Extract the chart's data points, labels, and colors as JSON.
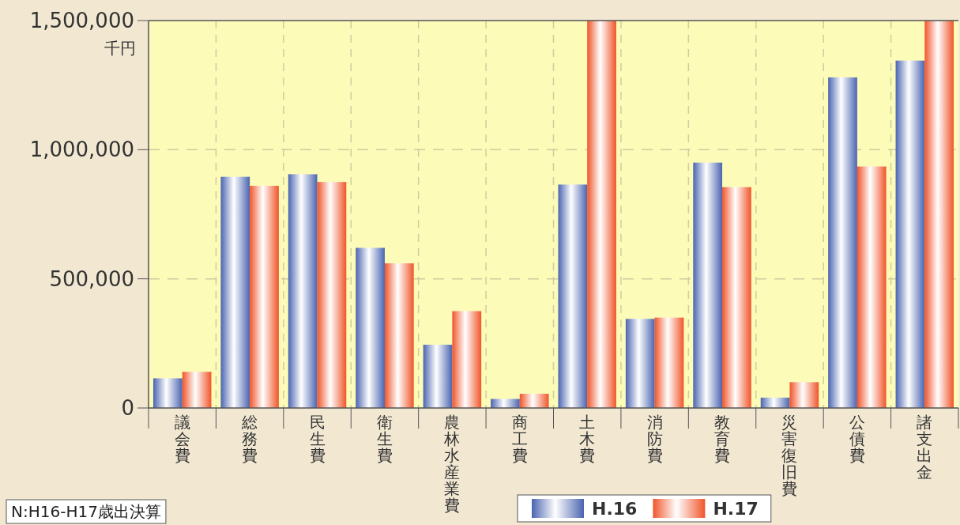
{
  "chart_data": {
    "type": "bar",
    "ylabel": "千円",
    "categories": [
      "議会費",
      "総務費",
      "民生費",
      "衛生費",
      "農林水産業費",
      "商工費",
      "土木費",
      "消防費",
      "教育費",
      "災害復旧費",
      "公債費",
      "諸支出金"
    ],
    "series": [
      {
        "name": "H.16",
        "color": "#4a64b0",
        "values": [
          115000,
          895000,
          905000,
          620000,
          245000,
          35000,
          865000,
          345000,
          950000,
          40000,
          1280000,
          1345000
        ]
      },
      {
        "name": "H.17",
        "color": "#f0552a",
        "values": [
          140000,
          860000,
          875000,
          560000,
          375000,
          55000,
          1500000,
          350000,
          855000,
          100000,
          935000,
          1500000
        ]
      }
    ],
    "ylim": [
      0,
      1500000
    ],
    "yticks": [
      {
        "value": 0,
        "label": "0"
      },
      {
        "value": 500000,
        "label": "500,000"
      },
      {
        "value": 1000000,
        "label": "1,000,000"
      },
      {
        "value": 1500000,
        "label": "1,500,000"
      }
    ],
    "grid": true,
    "legend": "bottom",
    "annotations": [
      "N:H16-H17歳出決算"
    ]
  }
}
